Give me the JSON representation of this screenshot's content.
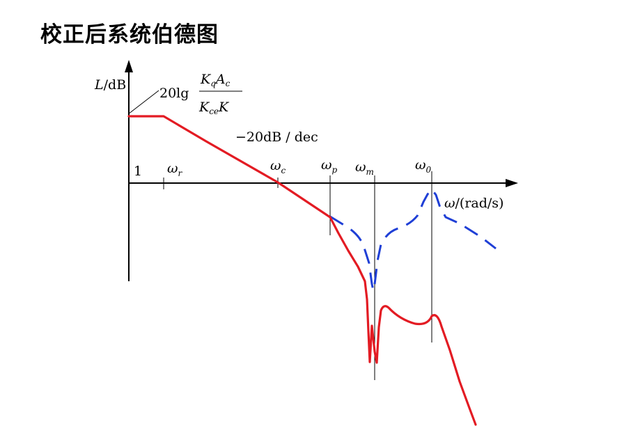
{
  "title": "校正后系统伯德图",
  "axes": {
    "y_label_italic": "L",
    "y_label_unit": "/dB",
    "x_label_symbol": "ω",
    "x_label_unit": "/(rad/s)",
    "origin_tick": "1"
  },
  "gain_formula": {
    "prefix": "20lg",
    "numerator_a": "K",
    "numerator_a_sub": "q",
    "numerator_b": "A",
    "numerator_b_sub": "c",
    "denominator_a": "K",
    "denominator_a_sub": "ce",
    "denominator_b": "K"
  },
  "slope_label": "−20dB / dec",
  "frequency_marks": [
    {
      "symbol": "ω",
      "sub": "r"
    },
    {
      "symbol": "ω",
      "sub": "c"
    },
    {
      "symbol": "ω",
      "sub": "p"
    },
    {
      "symbol": "ω",
      "sub": "m"
    },
    {
      "symbol": "ω",
      "sub": "0"
    }
  ],
  "colors": {
    "axis": "#000000",
    "corrected_curve": "#e31b23",
    "dashed_curve": "#1f3fd6",
    "guide": "#000000"
  }
}
